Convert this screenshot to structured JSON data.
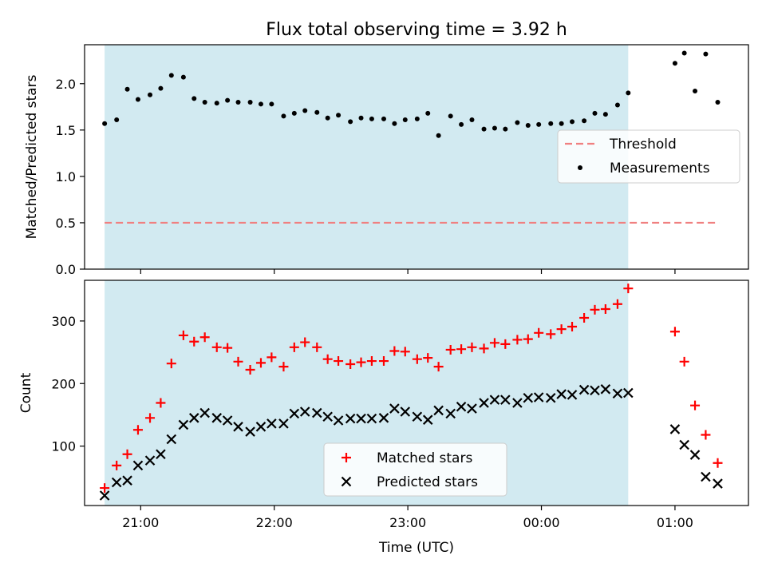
{
  "title": "Flux total observing time = 3.92 h",
  "xlabel": "Time (UTC)",
  "x_tick_labels": [
    "21:00",
    "22:00",
    "23:00",
    "00:00",
    "01:00"
  ],
  "colors": {
    "shade": "#add8e6",
    "threshold": "#f08080",
    "matched": "#ff0000",
    "predicted": "#000000",
    "measurement": "#000000"
  },
  "chart_data": [
    {
      "type": "scatter",
      "x_unit": "hours since 20:00 UTC",
      "xlim": [
        20.58,
        25.55
      ],
      "ylim": [
        0,
        2.42
      ],
      "ylabel": "Matched/Predicted stars",
      "y_ticks": [
        0.0,
        0.5,
        1.0,
        1.5,
        2.0
      ],
      "y_tick_labels": [
        "0.0",
        "0.5",
        "1.0",
        "1.5",
        "2.0"
      ],
      "shaded_span": [
        20.73,
        24.65
      ],
      "threshold": {
        "name": "Threshold",
        "value": 0.5,
        "x_range": [
          20.73,
          25.33
        ]
      },
      "legend": {
        "placement": "right",
        "entries": [
          "Threshold",
          "Measurements"
        ]
      },
      "series": [
        {
          "name": "Measurements",
          "marker": "dot",
          "points": [
            [
              20.73,
              1.57
            ],
            [
              20.82,
              1.61
            ],
            [
              20.9,
              1.94
            ],
            [
              20.98,
              1.83
            ],
            [
              21.07,
              1.88
            ],
            [
              21.15,
              1.95
            ],
            [
              21.23,
              2.09
            ],
            [
              21.32,
              2.07
            ],
            [
              21.4,
              1.84
            ],
            [
              21.48,
              1.8
            ],
            [
              21.57,
              1.79
            ],
            [
              21.65,
              1.82
            ],
            [
              21.73,
              1.8
            ],
            [
              21.82,
              1.8
            ],
            [
              21.9,
              1.78
            ],
            [
              21.98,
              1.78
            ],
            [
              22.07,
              1.65
            ],
            [
              22.15,
              1.68
            ],
            [
              22.23,
              1.71
            ],
            [
              22.32,
              1.69
            ],
            [
              22.4,
              1.63
            ],
            [
              22.48,
              1.66
            ],
            [
              22.57,
              1.59
            ],
            [
              22.65,
              1.63
            ],
            [
              22.73,
              1.62
            ],
            [
              22.82,
              1.62
            ],
            [
              22.9,
              1.57
            ],
            [
              22.98,
              1.61
            ],
            [
              23.07,
              1.62
            ],
            [
              23.15,
              1.68
            ],
            [
              23.23,
              1.44
            ],
            [
              23.32,
              1.65
            ],
            [
              23.4,
              1.56
            ],
            [
              23.48,
              1.61
            ],
            [
              23.57,
              1.51
            ],
            [
              23.65,
              1.52
            ],
            [
              23.73,
              1.51
            ],
            [
              23.82,
              1.58
            ],
            [
              23.9,
              1.55
            ],
            [
              23.98,
              1.56
            ],
            [
              24.07,
              1.57
            ],
            [
              24.15,
              1.57
            ],
            [
              24.23,
              1.59
            ],
            [
              24.32,
              1.6
            ],
            [
              24.4,
              1.68
            ],
            [
              24.48,
              1.67
            ],
            [
              24.57,
              1.77
            ],
            [
              24.65,
              1.9
            ],
            [
              25.0,
              2.22
            ],
            [
              25.07,
              2.33
            ],
            [
              25.15,
              1.92
            ],
            [
              25.23,
              2.32
            ],
            [
              25.32,
              1.8
            ]
          ]
        }
      ]
    },
    {
      "type": "scatter",
      "x_unit": "hours since 20:00 UTC",
      "xlim": [
        20.58,
        25.55
      ],
      "ylim": [
        5,
        365
      ],
      "ylabel": "Count",
      "y_ticks": [
        100,
        200,
        300
      ],
      "y_tick_labels": [
        "100",
        "200",
        "300"
      ],
      "shaded_span": [
        20.73,
        24.65
      ],
      "legend": {
        "placement": "bottom-center",
        "entries": [
          "Matched stars",
          "Predicted stars"
        ]
      },
      "series": [
        {
          "name": "Matched stars",
          "marker": "plus",
          "points": [
            [
              20.73,
              33
            ],
            [
              20.82,
              69
            ],
            [
              20.9,
              87
            ],
            [
              20.98,
              126
            ],
            [
              21.07,
              145
            ],
            [
              21.15,
              169
            ],
            [
              21.23,
              232
            ],
            [
              21.32,
              277
            ],
            [
              21.4,
              267
            ],
            [
              21.48,
              274
            ],
            [
              21.57,
              258
            ],
            [
              21.65,
              257
            ],
            [
              21.73,
              235
            ],
            [
              21.82,
              222
            ],
            [
              21.9,
              233
            ],
            [
              21.98,
              242
            ],
            [
              22.07,
              227
            ],
            [
              22.15,
              258
            ],
            [
              22.23,
              266
            ],
            [
              22.32,
              258
            ],
            [
              22.4,
              239
            ],
            [
              22.48,
              236
            ],
            [
              22.57,
              231
            ],
            [
              22.65,
              234
            ],
            [
              22.73,
              236
            ],
            [
              22.82,
              236
            ],
            [
              22.9,
              252
            ],
            [
              22.98,
              251
            ],
            [
              23.07,
              239
            ],
            [
              23.15,
              241
            ],
            [
              23.23,
              227
            ],
            [
              23.32,
              254
            ],
            [
              23.4,
              255
            ],
            [
              23.48,
              258
            ],
            [
              23.57,
              256
            ],
            [
              23.65,
              265
            ],
            [
              23.73,
              263
            ],
            [
              23.82,
              270
            ],
            [
              23.9,
              271
            ],
            [
              23.98,
              281
            ],
            [
              24.07,
              279
            ],
            [
              24.15,
              287
            ],
            [
              24.23,
              291
            ],
            [
              24.32,
              305
            ],
            [
              24.4,
              318
            ],
            [
              24.48,
              319
            ],
            [
              24.57,
              327
            ],
            [
              24.65,
              352
            ],
            [
              25.0,
              283
            ],
            [
              25.07,
              235
            ],
            [
              25.15,
              165
            ],
            [
              25.23,
              118
            ],
            [
              25.32,
              73
            ]
          ]
        },
        {
          "name": "Predicted stars",
          "marker": "x",
          "points": [
            [
              20.73,
              21
            ],
            [
              20.82,
              42
            ],
            [
              20.9,
              45
            ],
            [
              20.98,
              69
            ],
            [
              21.07,
              77
            ],
            [
              21.15,
              87
            ],
            [
              21.23,
              111
            ],
            [
              21.32,
              134
            ],
            [
              21.4,
              145
            ],
            [
              21.48,
              153
            ],
            [
              21.57,
              145
            ],
            [
              21.65,
              141
            ],
            [
              21.73,
              131
            ],
            [
              21.82,
              123
            ],
            [
              21.9,
              131
            ],
            [
              21.98,
              136
            ],
            [
              22.07,
              136
            ],
            [
              22.15,
              152
            ],
            [
              22.23,
              155
            ],
            [
              22.32,
              153
            ],
            [
              22.4,
              147
            ],
            [
              22.48,
              141
            ],
            [
              22.57,
              144
            ],
            [
              22.65,
              144
            ],
            [
              22.73,
              144
            ],
            [
              22.82,
              145
            ],
            [
              22.9,
              160
            ],
            [
              22.98,
              155
            ],
            [
              23.07,
              147
            ],
            [
              23.15,
              142
            ],
            [
              23.23,
              157
            ],
            [
              23.32,
              152
            ],
            [
              23.4,
              163
            ],
            [
              23.48,
              160
            ],
            [
              23.57,
              169
            ],
            [
              23.65,
              174
            ],
            [
              23.73,
              174
            ],
            [
              23.82,
              169
            ],
            [
              23.9,
              177
            ],
            [
              23.98,
              178
            ],
            [
              24.07,
              177
            ],
            [
              24.15,
              183
            ],
            [
              24.23,
              182
            ],
            [
              24.32,
              190
            ],
            [
              24.4,
              189
            ],
            [
              24.48,
              191
            ],
            [
              24.57,
              184
            ],
            [
              24.65,
              185
            ],
            [
              25.0,
              127
            ],
            [
              25.07,
              102
            ],
            [
              25.15,
              86
            ],
            [
              25.23,
              51
            ],
            [
              25.32,
              40
            ]
          ]
        }
      ]
    }
  ]
}
